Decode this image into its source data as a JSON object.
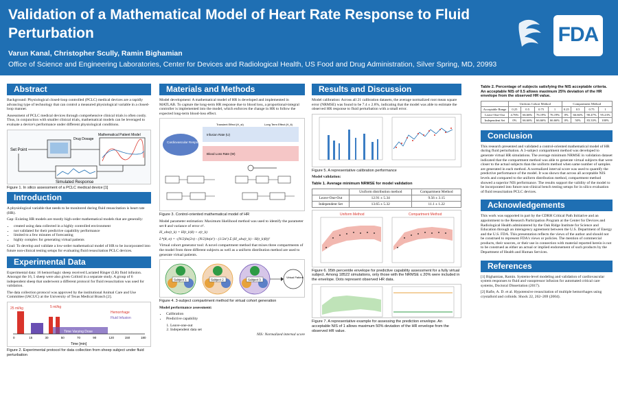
{
  "header": {
    "title": "Validation of a Mathematical Model of Heart Rate Response to Fluid Perturbation",
    "authors": "Varun Kanal, Christopher Scully, Ramin Bighamian",
    "affiliation": "Office of Science and Engineering Laboratories, Center for Devices and Radiological Health, US Food and Drug Administration, Silver Spring, MD, 20993",
    "logo_text": "FDA"
  },
  "abstract": {
    "heading": "Abstract",
    "p1": "Background: Physiological closed-loop controlled (PCLC) medical devices are a rapidly advancing type of technology that can control a measured physiological variable in a closed-loop manner.",
    "p2": "Assessment of PCLC medical devices through comprehensive clinical trials is often costly. Thus, in conjunction with smaller clinical trials, mathematical models can be leveraged to evaluate a device's performance under different physiological conditions.",
    "fig_labels": {
      "set_point": "Set Point",
      "drug": "Drug Dosage",
      "model": "Mathematical Patient Model",
      "sim": "Simulated Response"
    },
    "caption": "Figure 1. In silico assessment of a PCLC medical device [1]"
  },
  "introduction": {
    "heading": "Introduction",
    "p1": "A physiological variable that needs to be monitored during fluid resuscitation is heart rate (HR).",
    "gap": "Gap: Existing HR models are mostly high-order mathematical models that are generally:",
    "bullets": [
      "created using data collected in a highly controlled environment",
      "not validated for their predictive capability performance",
      "limited to a few minutes of forecasting",
      "highly complex for generating virtual patients"
    ],
    "goal": "Goal: To develop and validate a low-order mathematical model of HR to be incorporated into future non-clinical testing setups for evaluating fluid resuscitation PCLC devices."
  },
  "experimental": {
    "heading": "Experimental Data",
    "p1": "Experimental data: 16 hemorrhagic sheep received Lactated Ringer (LR) fluid infusion. Amongst the 16, 5 sheep were also given Colloid in a separate study. A group of 6 independent sheep that underwent a different protocol for fluid resuscitation was used for validation.",
    "p2": "The data collection protocol was approved by the institutional Animal Care and Use Committee (IACUC) at the University of Texas Medical Branch [2].",
    "fig_labels": {
      "r1": "25 ml/kg",
      "r2": "5 ml/kg",
      "hem": "Hemorrhage",
      "fluid": "Fluid Infusion",
      "tvd": "Time Varying Dose",
      "xlabel": "Time [min]"
    },
    "ticks": [
      "0",
      "15",
      "30",
      "50",
      "70",
      "90",
      "120",
      "150",
      "180"
    ],
    "caption": "Figure 2. Experimental protocol for data collection from sheep subject under fluid perturbation"
  },
  "methods": {
    "heading": "Materials and Methods",
    "p1": "Model development: A mathematical model of HR is developed and implemented in MATLAB. To capture the long-term HR response due to blood loss, a proportional-integral controller is implemented into the model, which enforces the change in HR to follow the expected long-term blood-loss effect.",
    "fig3_labels": {
      "cv": "Cardiovascular Response",
      "inf": "Infusion Rate (U)",
      "blr": "Blood Loss Rate (W)",
      "st": "Transient Effect (H_st)",
      "lt": "Long Term Effect (H_lt)"
    },
    "caption3": "Figure 3. Control-oriented mathematical model of HR",
    "p2": "Model parameter estimation: Maximum likelihood method was used to identify the parameter set θ and variance of error σ².",
    "eq1": "H_obs(t_k) = H(t_k|θ) + ε(t_k)",
    "eq2": "L*(θ, σ) = -(N/2)ln(2π) - (N/2)ln(σ²) - (1/2σ²) Σ (H_obs(t_k) - H(t_k|θ))²",
    "p3": "Virtual cohort generator tool: A novel compartment method that mixes three compartments of the model from three different subjects as well as a uniform distribution method are used to generate virtual patients.",
    "fig4_labels": {
      "s1": "Subject 1",
      "s2": "Subject 2",
      "s3": "Subject 3",
      "vp": "Virtual Patient"
    },
    "caption4": "Figure 4. 3-subject compartment method for virtual cohort generation",
    "p4": "Model performance assessment:",
    "assess": [
      "Calibration",
      "Predictive capability"
    ],
    "sub_assess": [
      "Leave-one-out",
      "Independent data set"
    ],
    "nis": "NIS: Normalized internal score"
  },
  "results": {
    "heading": "Results and Discussion",
    "p1": "Model calibration: Across all 21 calibration datasets, the average normalized root mean square error (NRMSE) was found to be 7.4 ± 2.8%, indicating that the model was able to estimate the observed HR response to fluid perturbation with a small error.",
    "caption5": "Figure 5. A representative calibration performance",
    "validation": "Model validation:",
    "table1_caption": "Table 1. Average minimum NRMSE for model validation",
    "table1": {
      "headers": [
        "",
        "Uniform distribution method",
        "Compartment Method"
      ],
      "rows": [
        [
          "Leave-One-Out",
          "12.91 ± 5.34",
          "9.56 ± 3.15"
        ],
        [
          "Independent Set",
          "13.65 ± 5.32",
          "11.1 ± 1.22"
        ]
      ]
    },
    "plot_titles": {
      "uniform": "Uniform Method",
      "compartment": "Compartment Method"
    },
    "caption6": "Figure 6. 95th percentile envelope for predictive capability assessment for a fully virtual subject. Among 18522 simulations, only those with the NRMSE ≤ 20% were included in the envelope. Dots represent observed HR data.",
    "caption7": "Figure 7. A representative example for assessing the prediction envelope. An acceptable NIS of 1 allows maximum 50% deviation of the HR envelope from the observed HR value."
  },
  "table2": {
    "caption": "Table 2. Percentage of subjects satisfying the NIS acceptable criteria. An acceptable NIS of 0.5 allows maximum 25% deviation of the HR envelope from the observed HR value.",
    "group_headers": [
      "Uniform Cohort Method",
      "Compartment Method"
    ],
    "rows": [
      [
        "Acceptable Range",
        "0.25",
        "0.5",
        "0.75",
        "1",
        "0.25",
        "0.5",
        "0.75",
        "1"
      ],
      [
        "Leave-One-Out",
        "4.76%",
        "66.66%",
        "76.19%",
        "76.19%",
        "0%",
        "66.66%",
        "90.47%",
        "95.23%"
      ],
      [
        "Independent Set",
        "0%",
        "66.66%",
        "66.66%",
        "66.66%",
        "0%",
        "50%",
        "83.33%",
        "100%"
      ]
    ]
  },
  "conclusion": {
    "heading": "Conclusion",
    "text": "This research presented and validated a control-oriented mathematical model of HR during fluid perturbation. A 3-subject compartment method was developed to generate virtual HR simulations. The average minimum NRMSE in validation dataset indicated that the compartment method was able to generate virtual subjects that were closer to the actual subjects than the uniform method when same number of samples are generated in each method. A normalized interval score was used to quantify the predictive performance of the model. It was shown that across all acceptable NIS levels and compared to the uniform distribution method, compartment method showed a superior NIS performance. The results support the validity of the model to be incorporated into future non-clinical bench testing setups for in silico evaluation of fluid resuscitation PCLC devices."
  },
  "acknowledgements": {
    "heading": "Acknowledgements",
    "text": "This work was supported in part by the CDRH Critical Path Initiative and an appointment to the Research Participation Program at the Center for Devices and Radiological Health administered by the Oak Ridge Institute for Science and Education through an interagency agreement between the U.S. Department of Energy and the U.S. FDA. This presentation reflects the views of the author and should not be construed to represent FDA's views or policies. The mention of commercial products, their sources, or their use in connection with material reported herein is not to be construed as either an actual or implied endorsement of such products by the Department of Health and Human Services."
  },
  "references": {
    "heading": "References",
    "items": [
      "[1] Bighamian, Ramin. Systems-level modeling and validation of cardiovascular system responses to fluid and vasopressor infusion for automated critical care systems, Doctoral Dissertation (2017).",
      "[2] Rafie, A. D. et al. Hypotensive resuscitation of multiple hemorrhages using crystalloid and colloids. Shock 22, 262–269 (2004)."
    ]
  },
  "colors": {
    "header": "#1f6fb3",
    "accent_red": "#d9342b",
    "accent_green": "#2e9b45"
  }
}
